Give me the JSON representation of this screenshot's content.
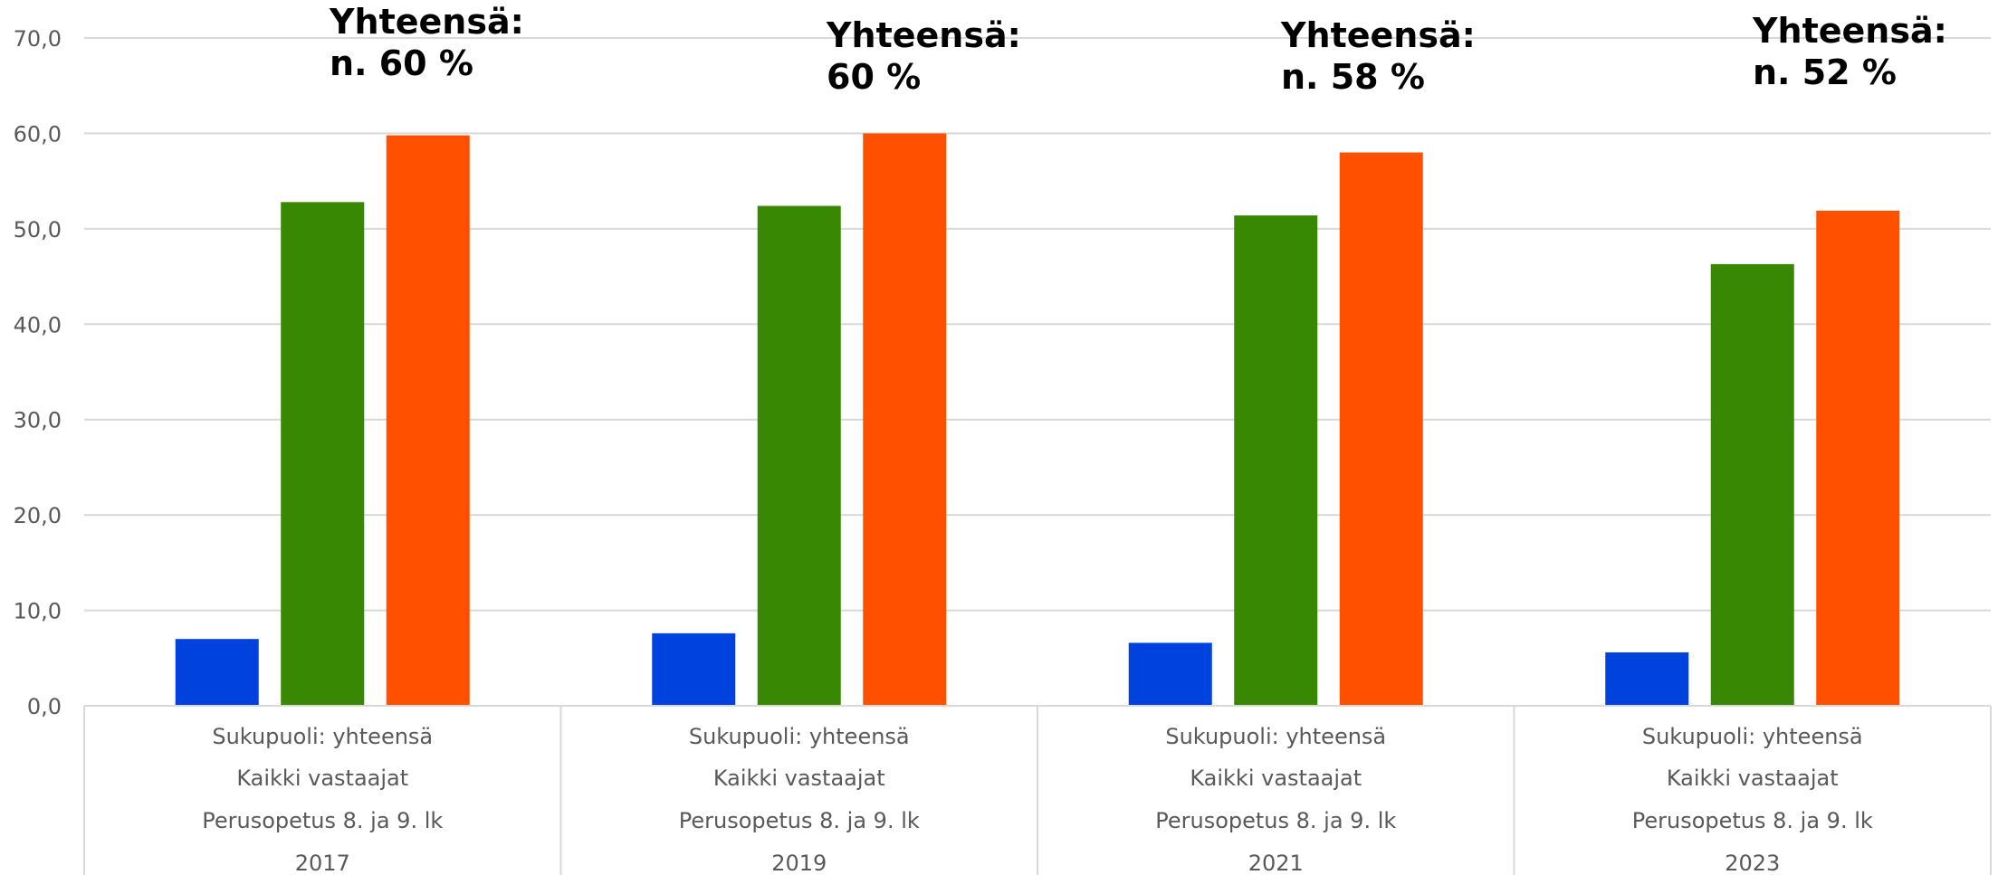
{
  "chart_data": {
    "type": "bar",
    "ylim": [
      0,
      70
    ],
    "yticks": [
      "0,0",
      "10,0",
      "20,0",
      "30,0",
      "40,0",
      "50,0",
      "60,0",
      "70,0"
    ],
    "grid": true,
    "categories": [
      {
        "lines": [
          "Sukupuoli: yhteensä",
          "Kaikki vastaajat",
          "Perusopetus 8. ja 9. lk",
          "2017"
        ]
      },
      {
        "lines": [
          "Sukupuoli: yhteensä",
          "Kaikki vastaajat",
          "Perusopetus 8. ja 9. lk",
          "2019"
        ]
      },
      {
        "lines": [
          "Sukupuoli: yhteensä",
          "Kaikki vastaajat",
          "Perusopetus 8. ja 9. lk",
          "2021"
        ]
      },
      {
        "lines": [
          "Sukupuoli: yhteensä",
          "Kaikki vastaajat",
          "Perusopetus 8. ja 9. lk",
          "2023"
        ]
      }
    ],
    "series": [
      {
        "color": "#0042dd",
        "values": [
          7.0,
          7.6,
          6.6,
          5.6
        ]
      },
      {
        "color": "#388803",
        "values": [
          52.8,
          52.4,
          51.4,
          46.3
        ]
      },
      {
        "color": "#ff5000",
        "values": [
          59.8,
          60.0,
          58.0,
          51.9
        ]
      }
    ],
    "annotations": [
      {
        "line1": "Yhteensä:",
        "line2": "n. 60 %"
      },
      {
        "line1": "Yhteensä:",
        "line2": "60 %"
      },
      {
        "line1": "Yhteensä:",
        "line2": "n. 58 %"
      },
      {
        "line1": "Yhteensä:",
        "line2": "n. 52 %"
      }
    ]
  }
}
